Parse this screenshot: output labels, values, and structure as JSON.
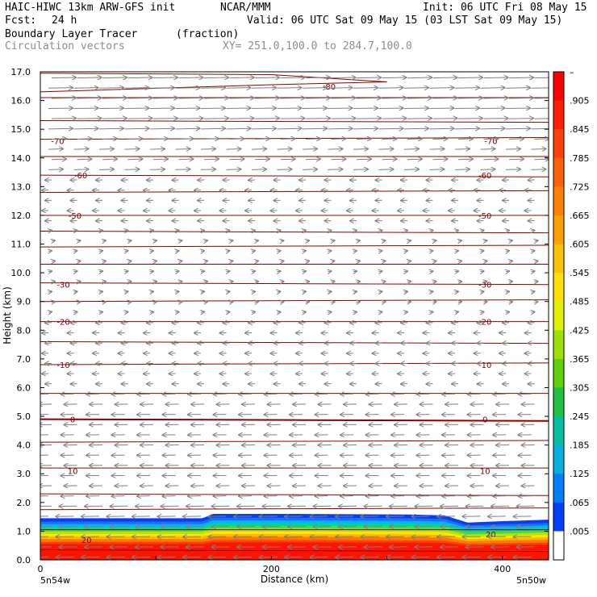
{
  "header": {
    "model": "HAIC-HIWC 13km ARW-GFS init",
    "org": "NCAR/MMM",
    "init": "Init: 06 UTC Fri 08 May 15",
    "fcst_label": "Fcst:",
    "fcst_value": "24 h",
    "valid": "Valid: 06 UTC Sat 09 May 15 (03 LST Sat 09 May 15)",
    "field": "Boundary Layer Tracer",
    "field_units": "(fraction)",
    "vector_label": "Circulation vectors",
    "xy": "XY= 251.0,100.0 to 284.7,100.0"
  },
  "chart_data": {
    "type": "heatmap",
    "title": "Boundary Layer Tracer",
    "ylabel": "Height (km)",
    "xlabel": "Distance (km)",
    "xlim": [
      0,
      440
    ],
    "ylim": [
      0,
      17
    ],
    "x_ticks": [
      "0",
      "200",
      "400"
    ],
    "x_tick_values": [
      0,
      200,
      400
    ],
    "y_ticks": [
      "0.0",
      "1.0",
      "2.0",
      "3.0",
      "4.0",
      "5.0",
      "6.0",
      "7.0",
      "8.0",
      "9.0",
      "10.0",
      "11.0",
      "12.0",
      "13.0",
      "14.0",
      "15.0",
      "16.0",
      "17.0"
    ],
    "left_end_label": "5n54w",
    "right_end_label": "5n50w",
    "colorbar": {
      "labels": [
        "–",
        ".905",
        ".845",
        ".785",
        ".725",
        ".665",
        ".605",
        ".545",
        ".485",
        ".425",
        ".365",
        ".305",
        ".245",
        ".185",
        ".125",
        ".065",
        ".005"
      ],
      "colors": [
        "#ff0000",
        "#ff2000",
        "#ff4000",
        "#ff6000",
        "#ff8000",
        "#ffa000",
        "#ffc000",
        "#ffe000",
        "#e0f000",
        "#a0e000",
        "#60d000",
        "#20c040",
        "#00c0a0",
        "#00b0e0",
        "#0080ff",
        "#0040ff",
        "#ffffff"
      ]
    },
    "isotherm_labels": [
      {
        "x": 250,
        "y": 16.5,
        "text": "-80"
      },
      {
        "x": 15,
        "y": 14.6,
        "text": "-70"
      },
      {
        "x": 390,
        "y": 14.6,
        "text": "-70"
      },
      {
        "x": 35,
        "y": 13.4,
        "text": "-60"
      },
      {
        "x": 385,
        "y": 13.4,
        "text": "-60"
      },
      {
        "x": 30,
        "y": 12.0,
        "text": "-50"
      },
      {
        "x": 385,
        "y": 12.0,
        "text": "-50"
      },
      {
        "x": 20,
        "y": 9.6,
        "text": "-30"
      },
      {
        "x": 385,
        "y": 9.6,
        "text": "-30"
      },
      {
        "x": 20,
        "y": 8.3,
        "text": "-20"
      },
      {
        "x": 385,
        "y": 8.3,
        "text": "-20"
      },
      {
        "x": 20,
        "y": 6.8,
        "text": "-10"
      },
      {
        "x": 385,
        "y": 6.8,
        "text": "-10"
      },
      {
        "x": 28,
        "y": 4.9,
        "text": "0"
      },
      {
        "x": 385,
        "y": 4.9,
        "text": "0"
      },
      {
        "x": 28,
        "y": 3.1,
        "text": "10"
      },
      {
        "x": 385,
        "y": 3.1,
        "text": "10"
      },
      {
        "x": 40,
        "y": 0.7,
        "text": "20"
      },
      {
        "x": 390,
        "y": 0.9,
        "text": "20"
      }
    ],
    "tracer_top_km": [
      {
        "x": 0,
        "y": 1.45
      },
      {
        "x": 80,
        "y": 1.45
      },
      {
        "x": 140,
        "y": 1.45
      },
      {
        "x": 150,
        "y": 1.6
      },
      {
        "x": 220,
        "y": 1.6
      },
      {
        "x": 320,
        "y": 1.58
      },
      {
        "x": 350,
        "y": 1.55
      },
      {
        "x": 370,
        "y": 1.3
      },
      {
        "x": 400,
        "y": 1.35
      },
      {
        "x": 440,
        "y": 1.4
      }
    ]
  }
}
